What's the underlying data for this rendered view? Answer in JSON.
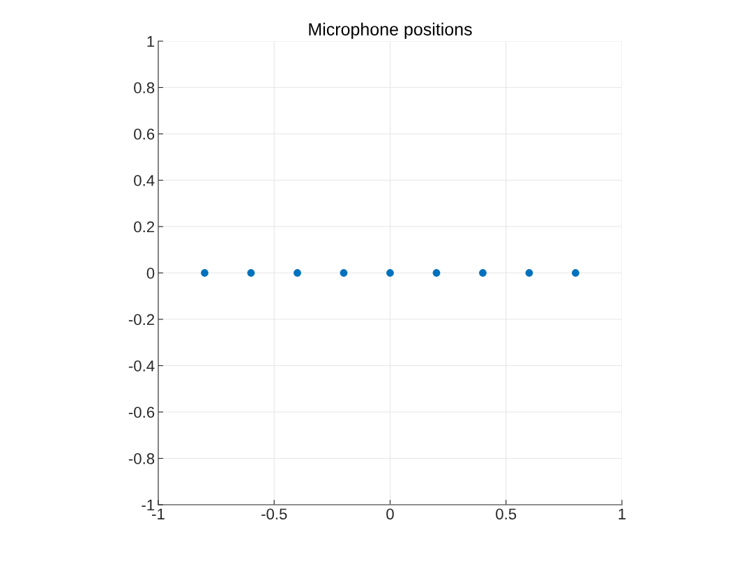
{
  "chart_data": {
    "type": "scatter",
    "title": "Microphone positions",
    "x": [
      -0.8,
      -0.6,
      -0.4,
      -0.2,
      0,
      0.2,
      0.4,
      0.6,
      0.8
    ],
    "series": [
      {
        "color": "#0072bd",
        "values": [
          0,
          0,
          0,
          0,
          0,
          0,
          0,
          0,
          0
        ]
      }
    ],
    "xlim": [
      -1,
      1
    ],
    "ylim": [
      -1,
      1
    ],
    "xticks": [
      -1,
      -0.5,
      0,
      0.5,
      1
    ],
    "yticks": [
      -1,
      -0.8,
      -0.6,
      -0.4,
      -0.2,
      0,
      0.2,
      0.4,
      0.6,
      0.8,
      1
    ],
    "grid": true,
    "marker": "circle"
  }
}
